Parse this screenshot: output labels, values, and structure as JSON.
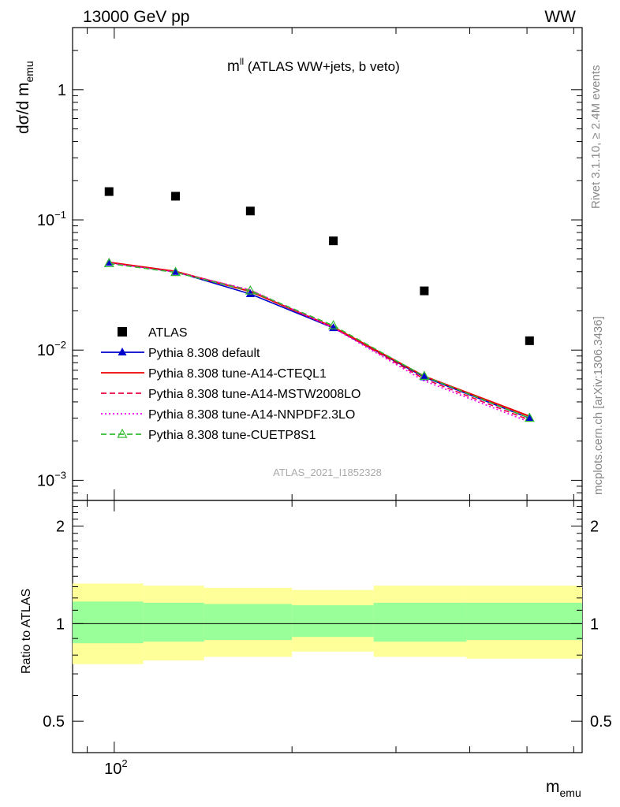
{
  "header": {
    "left": "13000 GeV pp",
    "right": "WW"
  },
  "plot": {
    "title_main": "m",
    "title_sup": "ll",
    "title_rest": " (ATLAS WW+jets, b veto)",
    "ylabel_main": "dσ/d m",
    "ylabel_sub": "emu",
    "xlabel_main": "m",
    "xlabel_sub": "emu",
    "ratio_ylabel": "Ratio to ATLAS",
    "watermark": "ATLAS_2021_I1852328",
    "side_text_top": "Rivet 3.1.10, ≥ 2.4M events",
    "side_text_bottom": "mcplots.cern.ch [arXiv:1306.3436]"
  },
  "chart_data": {
    "type": "scatter",
    "xscale": "log",
    "yscale": "log",
    "xlim": [
      85,
      620
    ],
    "ylim": [
      0.0007,
      3.0
    ],
    "ratio_ylim": [
      0.4,
      2.4
    ],
    "x_tick_labels": [
      {
        "value": 100,
        "main": "10",
        "sup": "2"
      }
    ],
    "y_tick_labels": [
      {
        "value": 1,
        "text": "1"
      },
      {
        "value": 0.1,
        "main": "10",
        "sup": "−1"
      },
      {
        "value": 0.01,
        "main": "10",
        "sup": "−2"
      },
      {
        "value": 0.001,
        "main": "10",
        "sup": "−3"
      }
    ],
    "ratio_tick_labels": [
      {
        "value": 2,
        "text": "2"
      },
      {
        "value": 1,
        "text": "1"
      },
      {
        "value": 0.5,
        "text": "0.5"
      }
    ],
    "legend_position": "bottom-left",
    "x_points": [
      98,
      127,
      170,
      235,
      335,
      505
    ],
    "bin_edges": [
      85,
      112,
      142,
      200,
      275,
      395,
      620
    ],
    "series": [
      {
        "name": "ATLAS",
        "color": "#000000",
        "marker": "square",
        "values": [
          0.165,
          0.152,
          0.117,
          0.069,
          0.0285,
          0.0118
        ]
      },
      {
        "name": "Pythia 8.308 default",
        "color": "#0000cc",
        "marker": "triangle-filled",
        "dash": "solid",
        "values": [
          0.047,
          0.04,
          0.027,
          0.0148,
          0.0062,
          0.003
        ]
      },
      {
        "name": "Pythia 8.308 tune-A14-CTEQL1",
        "color": "#ee0000",
        "marker": "none",
        "dash": "solid",
        "values": [
          0.0472,
          0.0402,
          0.0282,
          0.015,
          0.0063,
          0.0031
        ]
      },
      {
        "name": "Pythia 8.308 tune-A14-MSTW2008LO",
        "color": "#ee0044",
        "marker": "none",
        "dash": "dashed",
        "values": [
          0.0468,
          0.0398,
          0.0288,
          0.0149,
          0.006,
          0.0029
        ]
      },
      {
        "name": "Pythia 8.308 tune-A14-NNPDF2.3LO",
        "color": "#ee00ee",
        "marker": "none",
        "dash": "dotted",
        "values": [
          0.0466,
          0.0397,
          0.029,
          0.0148,
          0.0058,
          0.0028
        ]
      },
      {
        "name": "Pythia 8.308 tune-CUETP8S1",
        "color": "#33bb33",
        "marker": "triangle-open",
        "dash": "dashed",
        "values": [
          0.0462,
          0.0395,
          0.0285,
          0.0154,
          0.0063,
          0.003
        ]
      }
    ],
    "ratio_bands": {
      "yellow": {
        "color": "#ffff99",
        "low": [
          0.75,
          0.77,
          0.79,
          0.82,
          0.79,
          0.78
        ],
        "high": [
          1.33,
          1.31,
          1.29,
          1.27,
          1.31,
          1.31
        ]
      },
      "green": {
        "color": "#99ff99",
        "low": [
          0.87,
          0.88,
          0.89,
          0.91,
          0.88,
          0.89
        ],
        "high": [
          1.17,
          1.16,
          1.15,
          1.14,
          1.16,
          1.16
        ]
      }
    }
  }
}
